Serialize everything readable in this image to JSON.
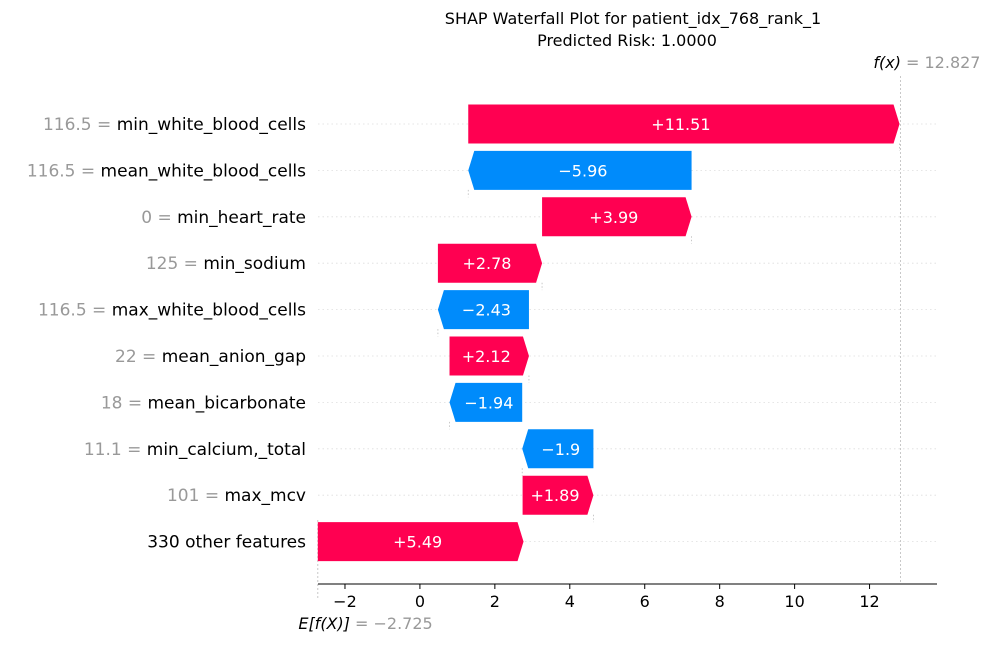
{
  "chart_data": {
    "type": "waterfall",
    "title_line1": "SHAP Waterfall Plot for patient_idx_768_rank_1",
    "title_line2": "Predicted Risk: 1.0000",
    "base_value": -2.725,
    "final_value": 12.827,
    "fx_label_main": "f(x)",
    "fx_label_value": "= 12.827",
    "ex_label_main": "E[f(X)]",
    "ex_label_value": "= −2.725",
    "xlim": [
      -2.8,
      13.8
    ],
    "xticks": [
      -2,
      0,
      2,
      4,
      6,
      8,
      10,
      12
    ],
    "xtick_labels": [
      "−2",
      "0",
      "2",
      "4",
      "6",
      "8",
      "10",
      "12"
    ],
    "positive_color": "#ff0051",
    "negative_color": "#008bfb",
    "features": [
      {
        "value": "116.5 =",
        "name": "min_white_blood_cells",
        "start": 1.29,
        "end": 12.8,
        "label": "+11.51"
      },
      {
        "value": "116.5 =",
        "name": "mean_white_blood_cells",
        "start": 7.25,
        "end": 1.29,
        "label": "−5.96"
      },
      {
        "value": "0 =",
        "name": "min_heart_rate",
        "start": 3.26,
        "end": 7.25,
        "label": "+3.99"
      },
      {
        "value": "125 =",
        "name": "min_sodium",
        "start": 0.48,
        "end": 3.26,
        "label": "+2.78"
      },
      {
        "value": "116.5 =",
        "name": "max_white_blood_cells",
        "start": 2.91,
        "end": 0.48,
        "label": "−2.43"
      },
      {
        "value": "22 =",
        "name": "mean_anion_gap",
        "start": 0.79,
        "end": 2.91,
        "label": "+2.12"
      },
      {
        "value": "18 =",
        "name": "mean_bicarbonate",
        "start": 2.73,
        "end": 0.79,
        "label": "−1.94"
      },
      {
        "value": "11.1 =",
        "name": "min_calcium,_total",
        "start": 4.63,
        "end": 2.73,
        "label": "−1.9"
      },
      {
        "value": "101 =",
        "name": "max_mcv",
        "start": 2.74,
        "end": 4.63,
        "label": "+1.89"
      },
      {
        "value": "",
        "name": "330 other features",
        "start": -2.725,
        "end": 2.765,
        "label": "+5.49"
      }
    ]
  }
}
